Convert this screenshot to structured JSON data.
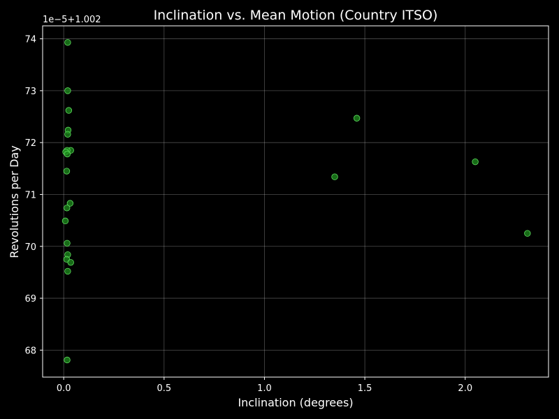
{
  "chart_data": {
    "type": "scatter",
    "title": "Inclination vs. Mean Motion (Country ITSO)",
    "xlabel": "Inclination (degrees)",
    "ylabel": "Revolutions per Day",
    "y_offset_label": "1e−5+1.002",
    "xlim": [
      -0.105,
      2.415
    ],
    "ylim": [
      67.48,
      74.25
    ],
    "xticks": [
      0.0,
      0.5,
      1.0,
      1.5,
      2.0
    ],
    "xtick_labels": [
      "0.0",
      "0.5",
      "1.0",
      "1.5",
      "2.0"
    ],
    "yticks": [
      68,
      69,
      70,
      71,
      72,
      73,
      74
    ],
    "ytick_labels": [
      "68",
      "69",
      "70",
      "71",
      "72",
      "73",
      "74"
    ],
    "grid": true,
    "colors": {
      "background": "#000000",
      "marker_fill": "#1f8f1f",
      "marker_edge": "#5fe05f",
      "text": "#ffffff"
    },
    "series": [
      {
        "points": [
          {
            "x": 0.02,
            "y": 73.93
          },
          {
            "x": 0.02,
            "y": 73.0
          },
          {
            "x": 0.025,
            "y": 72.62
          },
          {
            "x": 0.022,
            "y": 72.24
          },
          {
            "x": 0.02,
            "y": 72.16
          },
          {
            "x": 0.035,
            "y": 71.85
          },
          {
            "x": 0.017,
            "y": 71.85
          },
          {
            "x": 0.01,
            "y": 71.82
          },
          {
            "x": 0.018,
            "y": 71.78
          },
          {
            "x": 0.015,
            "y": 71.45
          },
          {
            "x": 0.032,
            "y": 70.83
          },
          {
            "x": 0.016,
            "y": 70.74
          },
          {
            "x": 0.008,
            "y": 70.49
          },
          {
            "x": 0.017,
            "y": 70.06
          },
          {
            "x": 0.02,
            "y": 69.84
          },
          {
            "x": 0.015,
            "y": 69.75
          },
          {
            "x": 0.035,
            "y": 69.69
          },
          {
            "x": 0.02,
            "y": 69.52
          },
          {
            "x": 0.017,
            "y": 67.81
          },
          {
            "x": 1.35,
            "y": 71.34
          },
          {
            "x": 1.46,
            "y": 72.47
          },
          {
            "x": 2.05,
            "y": 71.63
          },
          {
            "x": 2.31,
            "y": 70.25
          }
        ]
      }
    ]
  }
}
